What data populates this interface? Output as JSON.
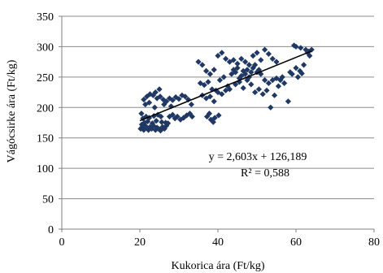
{
  "chart_data": {
    "type": "scatter",
    "xlabel": "Kukorica ára (Ft/kg)",
    "ylabel": "Vágócsirke ára (Ft/kg)",
    "xlim": [
      0,
      80
    ],
    "ylim": [
      0,
      350
    ],
    "x_ticks": [
      0,
      20,
      40,
      60,
      80
    ],
    "y_ticks": [
      0,
      50,
      100,
      150,
      200,
      250,
      300,
      350
    ],
    "grid": "horizontal",
    "marker_color": "#1F3864",
    "trendline": {
      "slope": 2.603,
      "intercept": 126.189,
      "x_range": [
        20,
        64
      ],
      "equation": "y = 2,603x + 126,189",
      "r_squared": "R² = 0,588",
      "color": "#000000"
    },
    "points": [
      [
        20.2,
        165
      ],
      [
        20.6,
        168
      ],
      [
        21.0,
        163
      ],
      [
        21.4,
        170
      ],
      [
        21.8,
        166
      ],
      [
        22.2,
        163
      ],
      [
        22.6,
        168
      ],
      [
        23.0,
        165
      ],
      [
        23.5,
        170
      ],
      [
        24.0,
        163
      ],
      [
        24.4,
        167
      ],
      [
        24.8,
        165
      ],
      [
        25.3,
        162
      ],
      [
        25.8,
        168
      ],
      [
        26.3,
        165
      ],
      [
        26.8,
        170
      ],
      [
        27.2,
        174
      ],
      [
        20.5,
        172
      ],
      [
        21.2,
        175
      ],
      [
        22.0,
        177
      ],
      [
        23.2,
        174
      ],
      [
        24.2,
        178
      ],
      [
        25.6,
        176
      ],
      [
        26.6,
        175
      ],
      [
        20.8,
        182
      ],
      [
        21.6,
        185
      ],
      [
        22.4,
        183
      ],
      [
        23.6,
        186
      ],
      [
        24.6,
        188
      ],
      [
        25.4,
        185
      ],
      [
        27.6,
        185
      ],
      [
        28.4,
        188
      ],
      [
        29.0,
        182
      ],
      [
        29.6,
        185
      ],
      [
        30.4,
        180
      ],
      [
        31.2,
        183
      ],
      [
        32.0,
        187
      ],
      [
        32.8,
        190
      ],
      [
        33.4,
        185
      ],
      [
        20.4,
        190
      ],
      [
        21.0,
        213
      ],
      [
        21.8,
        218
      ],
      [
        22.6,
        222
      ],
      [
        23.4,
        220
      ],
      [
        24.4,
        215
      ],
      [
        25.2,
        218
      ],
      [
        26.0,
        213
      ],
      [
        26.8,
        210
      ],
      [
        27.6,
        215
      ],
      [
        28.4,
        212
      ],
      [
        29.2,
        217
      ],
      [
        30.0,
        214
      ],
      [
        30.8,
        220
      ],
      [
        31.6,
        218
      ],
      [
        32.4,
        213
      ],
      [
        33.2,
        205
      ],
      [
        21.4,
        205
      ],
      [
        22.4,
        208
      ],
      [
        23.8,
        200
      ],
      [
        25.0,
        230
      ],
      [
        24.0,
        225
      ],
      [
        26.2,
        205
      ],
      [
        28.0,
        202
      ],
      [
        35.0,
        275
      ],
      [
        36.0,
        270
      ],
      [
        37.0,
        260
      ],
      [
        38.0,
        255
      ],
      [
        39.0,
        262
      ],
      [
        40.0,
        285
      ],
      [
        41.0,
        290
      ],
      [
        42.0,
        280
      ],
      [
        35.5,
        240
      ],
      [
        36.5,
        237
      ],
      [
        37.5,
        242
      ],
      [
        38.5,
        230
      ],
      [
        39.5,
        228
      ],
      [
        40.5,
        245
      ],
      [
        41.5,
        250
      ],
      [
        42.5,
        235
      ],
      [
        36.0,
        220
      ],
      [
        37.0,
        215
      ],
      [
        38.0,
        218
      ],
      [
        39.0,
        210
      ],
      [
        40.0,
        225
      ],
      [
        41.0,
        222
      ],
      [
        42.0,
        228
      ],
      [
        43.0,
        230
      ],
      [
        37.2,
        185
      ],
      [
        38.2,
        180
      ],
      [
        39.2,
        183
      ],
      [
        40.2,
        187
      ],
      [
        37.8,
        190
      ],
      [
        38.8,
        176
      ],
      [
        43.5,
        255
      ],
      [
        44.0,
        262
      ],
      [
        44.5,
        258
      ],
      [
        45.0,
        265
      ],
      [
        45.5,
        248
      ],
      [
        46.0,
        252
      ],
      [
        46.5,
        260
      ],
      [
        47.0,
        255
      ],
      [
        47.5,
        262
      ],
      [
        48.0,
        250
      ],
      [
        48.5,
        258
      ],
      [
        49.0,
        265
      ],
      [
        49.5,
        270
      ],
      [
        50.0,
        258
      ],
      [
        50.5,
        262
      ],
      [
        51.0,
        255
      ],
      [
        43.0,
        275
      ],
      [
        44.0,
        278
      ],
      [
        45.0,
        272
      ],
      [
        46.0,
        280
      ],
      [
        47.0,
        275
      ],
      [
        48.0,
        270
      ],
      [
        49.0,
        285
      ],
      [
        50.0,
        290
      ],
      [
        51.0,
        278
      ],
      [
        52.0,
        295
      ],
      [
        53.0,
        288
      ],
      [
        54.0,
        280
      ],
      [
        55.0,
        275
      ],
      [
        44.5,
        238
      ],
      [
        45.5,
        242
      ],
      [
        46.5,
        232
      ],
      [
        47.5,
        245
      ],
      [
        48.5,
        238
      ],
      [
        49.5,
        225
      ],
      [
        50.5,
        230
      ],
      [
        51.5,
        222
      ],
      [
        52.5,
        228
      ],
      [
        53.5,
        200
      ],
      [
        54.5,
        220
      ],
      [
        55.5,
        235
      ],
      [
        56.0,
        245
      ],
      [
        57.0,
        240
      ],
      [
        58.0,
        210
      ],
      [
        59.0,
        255
      ],
      [
        60.0,
        265
      ],
      [
        61.0,
        260
      ],
      [
        62.0,
        270
      ],
      [
        63.0,
        290
      ],
      [
        63.5,
        285
      ],
      [
        64.0,
        295
      ],
      [
        62.5,
        295
      ],
      [
        63.2,
        292
      ],
      [
        60.0,
        300
      ],
      [
        61.2,
        298
      ],
      [
        59.5,
        302
      ],
      [
        56.5,
        250
      ],
      [
        58.5,
        258
      ],
      [
        60.5,
        250
      ],
      [
        61.5,
        256
      ],
      [
        55.0,
        248
      ],
      [
        54.0,
        245
      ],
      [
        53.0,
        240
      ],
      [
        52.0,
        245
      ]
    ]
  }
}
